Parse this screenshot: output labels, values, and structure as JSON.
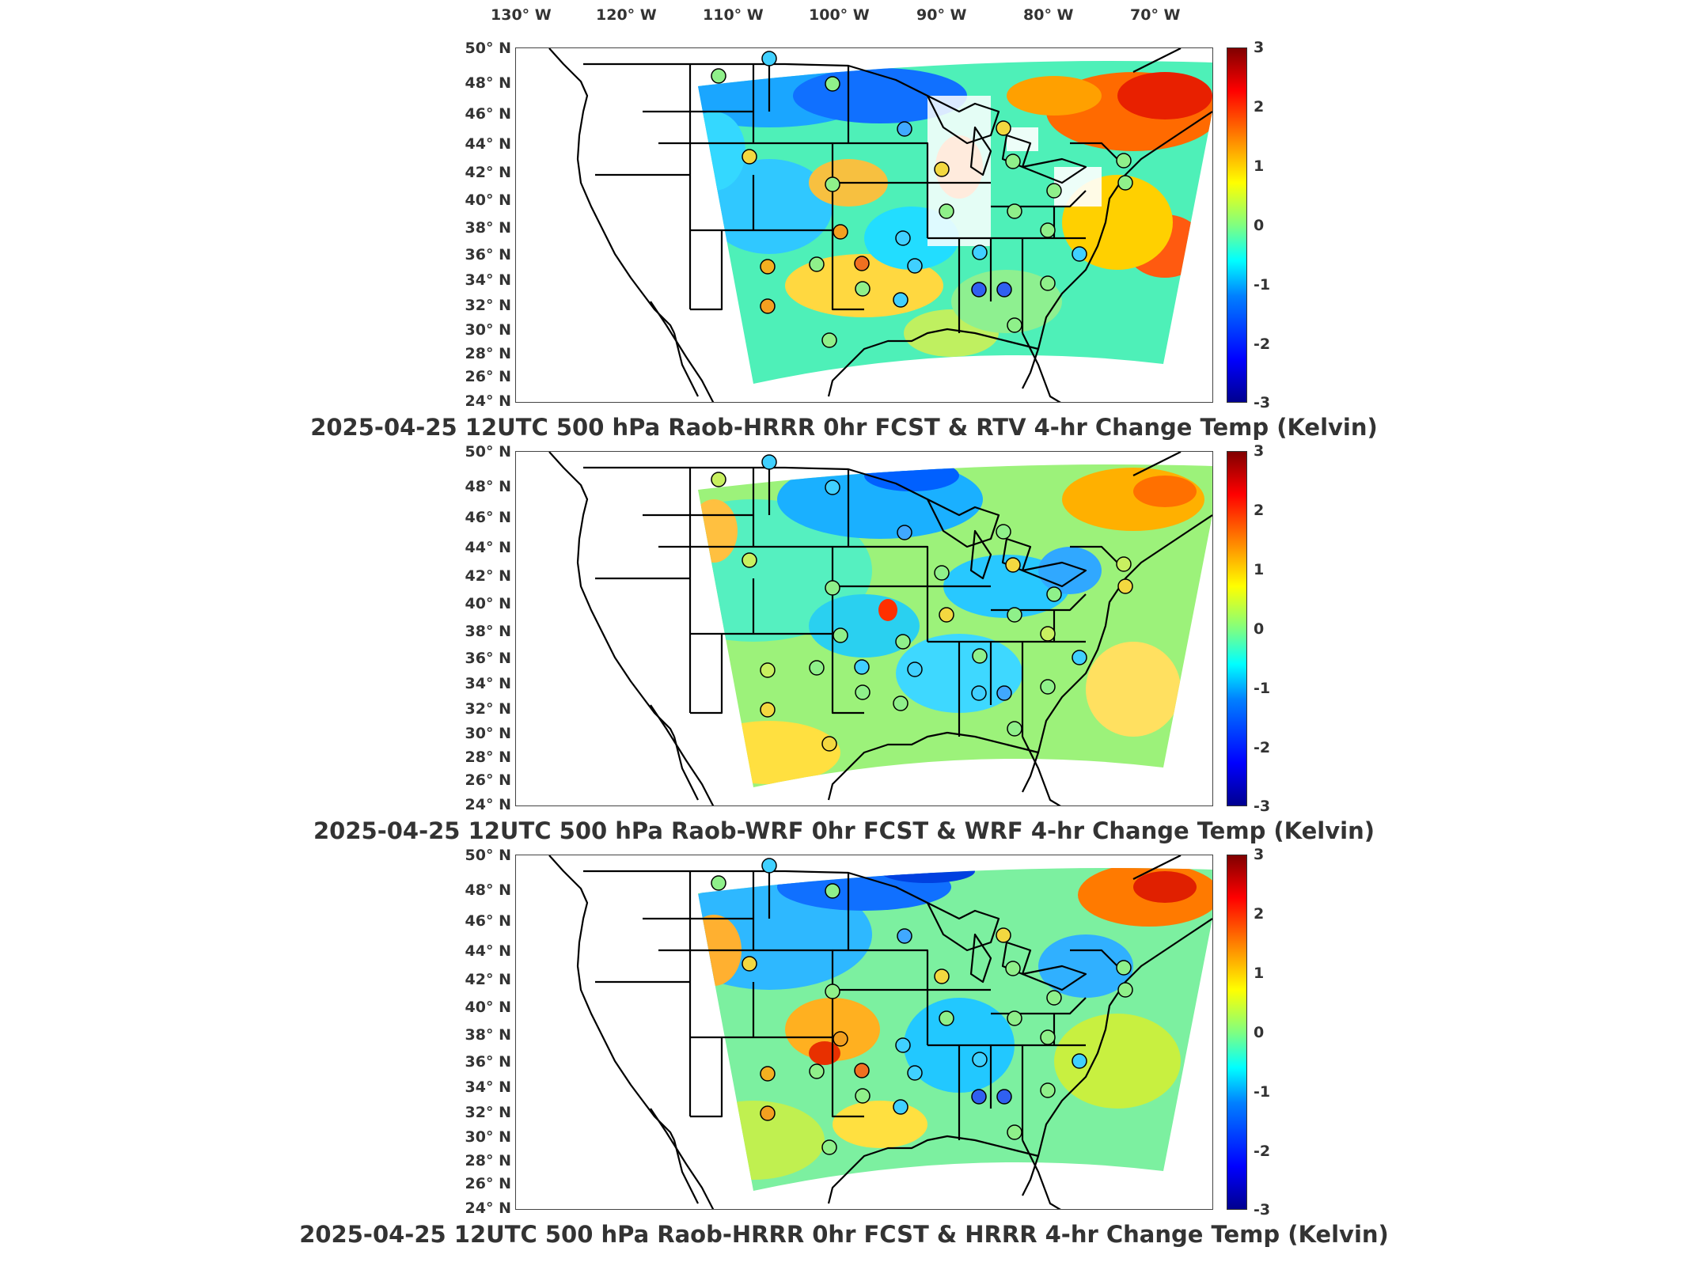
{
  "longitude_labels": [
    "130° W",
    "120° W",
    "110° W",
    "100° W",
    "90° W",
    "80° W",
    "70° W"
  ],
  "latitude_labels": [
    "50° N",
    "48° N",
    "46° N",
    "44° N",
    "42° N",
    "40° N",
    "38° N",
    "36° N",
    "34° N",
    "32° N",
    "30° N",
    "28° N",
    "26° N",
    "24° N"
  ],
  "colorbar": {
    "ticks": [
      "3",
      "2",
      "1",
      "0",
      "-1",
      "-2",
      "-3"
    ],
    "range": [
      -3,
      3
    ],
    "colormap": "jet"
  },
  "panels": [
    {
      "title": "2025-04-25 12UTC 500 hPa Raob-HRRR 0hr FCST & RTV 4-hr Change Temp (Kelvin)",
      "field": "RTV 4-hr Change"
    },
    {
      "title": "2025-04-25 12UTC 500 hPa Raob-WRF 0hr FCST & WRF 4-hr Change Temp (Kelvin)",
      "field": "WRF 4-hr Change"
    },
    {
      "title": "2025-04-25 12UTC 500 hPa Raob-HRRR 0hr FCST & HRRR 4-hr Change Temp (Kelvin)",
      "field": "HRRR 4-hr Change"
    }
  ]
}
